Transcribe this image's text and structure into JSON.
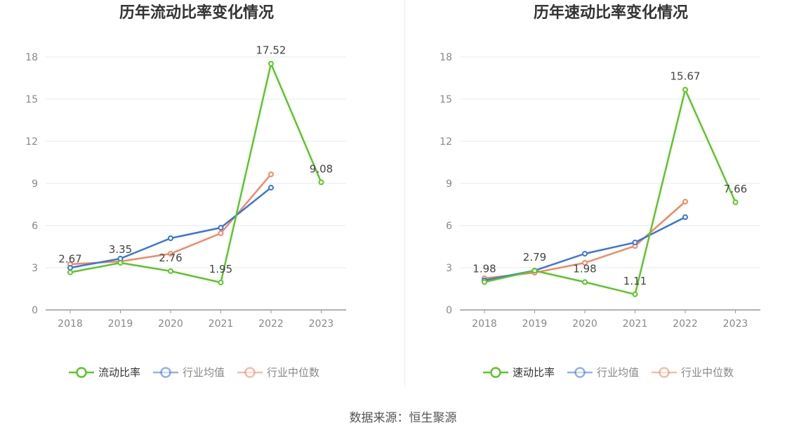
{
  "source_label": "数据来源：恒生聚源",
  "colors": {
    "company": "#5ac727",
    "avg": "#3b74dc",
    "median": "#f08a63",
    "grid": "#e6e8f0",
    "axis": "#999999",
    "tick_text": "#888888",
    "title": "#333333",
    "label": "#444444"
  },
  "chart_data": [
    {
      "type": "line",
      "title": "历年流动比率变化情况",
      "categories": [
        "2018",
        "2019",
        "2020",
        "2021",
        "2022",
        "2023"
      ],
      "ylim": [
        0,
        18
      ],
      "yticks": [
        0,
        3,
        6,
        9,
        12,
        15,
        18
      ],
      "legend_position": "bottom-center",
      "series": [
        {
          "name": "流动比率",
          "key": "company",
          "values": [
            2.67,
            3.35,
            2.76,
            1.95,
            17.52,
            9.08
          ],
          "labels": [
            "2.67",
            "3.35",
            "2.76",
            "1.95",
            "17.52",
            "9.08"
          ]
        },
        {
          "name": "行业均值",
          "key": "avg",
          "values": [
            3.0,
            3.65,
            5.1,
            5.85,
            8.7,
            null
          ]
        },
        {
          "name": "行业中位数",
          "key": "median",
          "values": [
            3.25,
            3.45,
            4.0,
            5.45,
            9.65,
            null
          ]
        }
      ]
    },
    {
      "type": "line",
      "title": "历年速动比率变化情况",
      "categories": [
        "2018",
        "2019",
        "2020",
        "2021",
        "2022",
        "2023"
      ],
      "ylim": [
        0,
        18
      ],
      "yticks": [
        0,
        3,
        6,
        9,
        12,
        15,
        18
      ],
      "legend_position": "bottom-center",
      "series": [
        {
          "name": "速动比率",
          "key": "company",
          "values": [
            1.98,
            2.79,
            1.98,
            1.11,
            15.67,
            7.66
          ],
          "labels": [
            "1.98",
            "2.79",
            "1.98",
            "1.11",
            "15.67",
            "7.66"
          ]
        },
        {
          "name": "行业均值",
          "key": "avg",
          "values": [
            2.1,
            2.8,
            4.0,
            4.8,
            6.6,
            null
          ]
        },
        {
          "name": "行业中位数",
          "key": "median",
          "values": [
            2.25,
            2.65,
            3.35,
            4.55,
            7.7,
            null
          ]
        }
      ]
    }
  ]
}
